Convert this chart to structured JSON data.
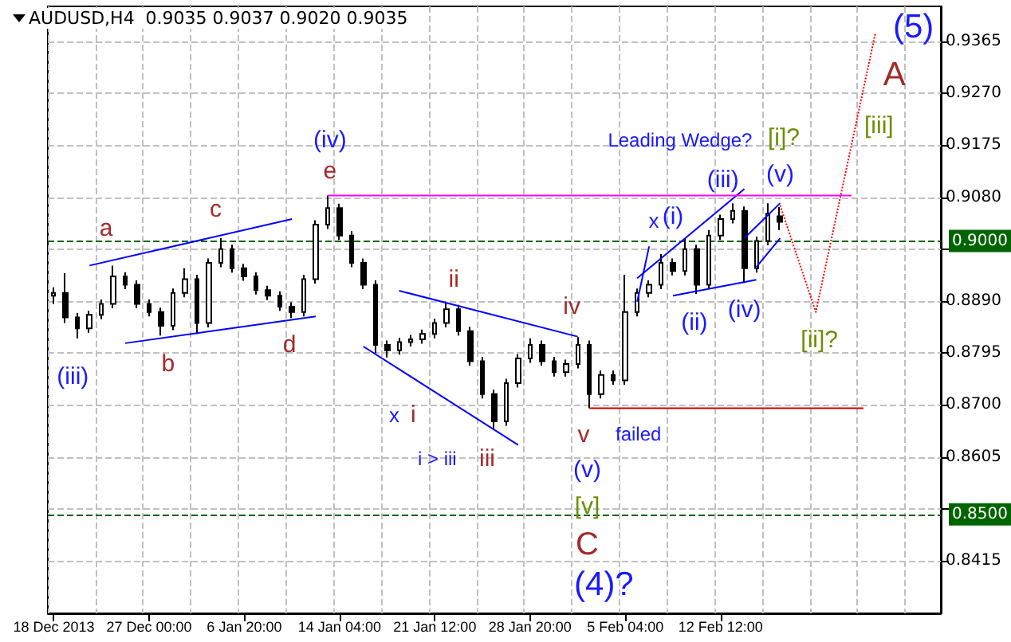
{
  "chart_data": {
    "type": "candlestick",
    "title": "AUDUSD,H4  0.9035 0.9037 0.9020 0.9035",
    "categories": [
      "18 Dec 2013",
      null,
      null,
      null,
      null,
      null,
      null,
      null,
      "27 Dec 00:00",
      null,
      null,
      null,
      null,
      null,
      null,
      null,
      "6 Jan 20:00",
      null,
      null,
      null,
      null,
      null,
      null,
      null,
      "14 Jan 04:00",
      null,
      null,
      null,
      null,
      null,
      null,
      null,
      "21 Jan 12:00",
      null,
      null,
      null,
      null,
      null,
      null,
      null,
      "28 Jan 20:00",
      null,
      null,
      null,
      null,
      null,
      null,
      null,
      "5 Feb 04:00",
      null,
      null,
      null,
      null,
      null,
      null,
      null,
      "12 Feb 12:00",
      null,
      null,
      null,
      null,
      null,
      null,
      null,
      null,
      null,
      null,
      null,
      null,
      null,
      null,
      null,
      null,
      null,
      null
    ],
    "color": "#000000",
    "ohlc": [
      [
        0.89,
        0.8915,
        0.8885,
        0.8905
      ],
      [
        0.8905,
        0.8941,
        0.885,
        0.886
      ],
      [
        0.886,
        0.8868,
        0.8822,
        0.884
      ],
      [
        0.884,
        0.8872,
        0.8832,
        0.8865
      ],
      [
        0.8865,
        0.8893,
        0.8857,
        0.8885
      ],
      [
        0.8885,
        0.8955,
        0.8877,
        0.8935
      ],
      [
        0.8935,
        0.8943,
        0.8912,
        0.892
      ],
      [
        0.892,
        0.8928,
        0.8877,
        0.8885
      ],
      [
        0.8885,
        0.8893,
        0.8862,
        0.887
      ],
      [
        0.887,
        0.8878,
        0.8827,
        0.8845
      ],
      [
        0.8845,
        0.8913,
        0.8837,
        0.8905
      ],
      [
        0.8905,
        0.895,
        0.8897,
        0.893
      ],
      [
        0.893,
        0.8938,
        0.883,
        0.885
      ],
      [
        0.885,
        0.8968,
        0.8842,
        0.896
      ],
      [
        0.896,
        0.9005,
        0.8952,
        0.8985
      ],
      [
        0.8985,
        0.8993,
        0.8942,
        0.895
      ],
      [
        0.895,
        0.8958,
        0.8927,
        0.8935
      ],
      [
        0.8935,
        0.8943,
        0.8902,
        0.891
      ],
      [
        0.891,
        0.8918,
        0.8892,
        0.89
      ],
      [
        0.89,
        0.8908,
        0.8872,
        0.888
      ],
      [
        0.888,
        0.8888,
        0.8859,
        0.887
      ],
      [
        0.887,
        0.8938,
        0.8862,
        0.893
      ],
      [
        0.893,
        0.9038,
        0.8922,
        0.903
      ],
      [
        0.903,
        0.9083,
        0.9022,
        0.906
      ],
      [
        0.906,
        0.9068,
        0.9002,
        0.901
      ],
      [
        0.901,
        0.9018,
        0.8952,
        0.896
      ],
      [
        0.896,
        0.8968,
        0.8912,
        0.892
      ],
      [
        0.892,
        0.8928,
        0.8795,
        0.881
      ],
      [
        0.881,
        0.8818,
        0.8787,
        0.88
      ],
      [
        0.88,
        0.8823,
        0.8792,
        0.8815
      ],
      [
        0.8815,
        0.8828,
        0.8807,
        0.882
      ],
      [
        0.882,
        0.8838,
        0.8812,
        0.883
      ],
      [
        0.883,
        0.8858,
        0.8822,
        0.885
      ],
      [
        0.885,
        0.8889,
        0.8842,
        0.8875
      ],
      [
        0.8875,
        0.8883,
        0.8827,
        0.8835
      ],
      [
        0.8835,
        0.8843,
        0.8772,
        0.878
      ],
      [
        0.878,
        0.8788,
        0.8712,
        0.872
      ],
      [
        0.872,
        0.8728,
        0.8656,
        0.867
      ],
      [
        0.867,
        0.8748,
        0.8662,
        0.874
      ],
      [
        0.874,
        0.8793,
        0.8732,
        0.8785
      ],
      [
        0.8785,
        0.8822,
        0.8777,
        0.881
      ],
      [
        0.881,
        0.8818,
        0.8772,
        0.878
      ],
      [
        0.878,
        0.8788,
        0.8752,
        0.876
      ],
      [
        0.876,
        0.8783,
        0.8752,
        0.8775
      ],
      [
        0.8775,
        0.8824,
        0.8767,
        0.881
      ],
      [
        0.881,
        0.8818,
        0.8694,
        0.872
      ],
      [
        0.872,
        0.8763,
        0.8712,
        0.8755
      ],
      [
        0.8755,
        0.8763,
        0.8737,
        0.8745
      ],
      [
        0.8745,
        0.8938,
        0.8737,
        0.887
      ],
      [
        0.887,
        0.8913,
        0.8862,
        0.8905
      ],
      [
        0.8905,
        0.8928,
        0.8897,
        0.892
      ],
      [
        0.892,
        0.8976,
        0.8912,
        0.896
      ],
      [
        0.896,
        0.8968,
        0.8937,
        0.8945
      ],
      [
        0.8945,
        0.9005,
        0.8937,
        0.8985
      ],
      [
        0.8985,
        0.8993,
        0.8903,
        0.892
      ],
      [
        0.892,
        0.902,
        0.8912,
        0.901
      ],
      [
        0.901,
        0.9048,
        0.9002,
        0.904
      ],
      [
        0.904,
        0.9069,
        0.9032,
        0.9055
      ],
      [
        0.9055,
        0.9063,
        0.8923,
        0.895
      ],
      [
        0.895,
        0.9008,
        0.8942,
        0.9
      ],
      [
        0.9,
        0.9069,
        0.8992,
        0.905
      ],
      [
        0.9045,
        0.9062,
        0.902,
        0.9035
      ],
      null,
      null,
      null,
      null,
      null,
      null,
      null,
      null,
      null,
      null,
      null,
      null,
      null
    ],
    "series": [
      {
        "type": "line",
        "color": "#0000ff",
        "values": [
          null,
          null,
          null,
          0.8955,
          null,
          null,
          null,
          null,
          null,
          null,
          null,
          null,
          null,
          null,
          null,
          null,
          null,
          null,
          null,
          null,
          0.904,
          null,
          null,
          null,
          null,
          null,
          null,
          null,
          null,
          null,
          null,
          null,
          null,
          null,
          null,
          null,
          null,
          null,
          null,
          null,
          null,
          null,
          null,
          null,
          null,
          null,
          null,
          null,
          null,
          null,
          null,
          null,
          null,
          null,
          null,
          null,
          null,
          null,
          null,
          null,
          null,
          null,
          null,
          null,
          null,
          null,
          null,
          null,
          null,
          null,
          null,
          null,
          null,
          null,
          null
        ]
      },
      {
        "type": "line",
        "color": "#0000ff",
        "values": [
          null,
          null,
          null,
          null,
          null,
          null,
          0.8813,
          null,
          null,
          null,
          null,
          null,
          null,
          null,
          null,
          null,
          null,
          null,
          null,
          null,
          null,
          null,
          0.8862,
          null,
          null,
          null,
          null,
          null,
          null,
          null,
          null,
          null,
          null,
          null,
          null,
          null,
          null,
          null,
          null,
          null,
          null,
          null,
          null,
          null,
          null,
          null,
          null,
          null,
          null,
          null,
          null,
          null,
          null,
          null,
          null,
          null,
          null,
          null,
          null,
          null,
          null,
          null,
          null,
          null,
          null,
          null,
          null,
          null,
          null,
          null,
          null,
          null,
          null,
          null,
          null
        ]
      },
      {
        "type": "line",
        "color": "#0000ff",
        "values": [
          null,
          null,
          null,
          null,
          null,
          null,
          null,
          null,
          null,
          null,
          null,
          null,
          null,
          null,
          null,
          null,
          null,
          null,
          null,
          null,
          null,
          null,
          null,
          null,
          null,
          null,
          0.8807,
          null,
          null,
          null,
          null,
          null,
          null,
          null,
          null,
          null,
          null,
          null,
          null,
          0.8627,
          null,
          null,
          null,
          null,
          null,
          null,
          null,
          null,
          null,
          null,
          null,
          null,
          null,
          null,
          null,
          null,
          null,
          null,
          null,
          null,
          null,
          null,
          null,
          null,
          null,
          null,
          null,
          null,
          null,
          null,
          null,
          null,
          null,
          null,
          null
        ]
      },
      {
        "type": "line",
        "color": "#0000ff",
        "values": [
          null,
          null,
          null,
          null,
          null,
          null,
          null,
          null,
          null,
          null,
          null,
          null,
          null,
          null,
          null,
          null,
          null,
          null,
          null,
          null,
          null,
          null,
          null,
          null,
          null,
          null,
          null,
          null,
          null,
          0.8909,
          null,
          null,
          null,
          null,
          null,
          null,
          null,
          null,
          null,
          null,
          null,
          null,
          null,
          null,
          0.8825,
          null,
          null,
          null,
          null,
          null,
          null,
          null,
          null,
          null,
          null,
          null,
          null,
          null,
          null,
          null,
          null,
          null,
          null,
          null,
          null,
          null,
          null,
          null,
          null,
          null,
          null,
          null,
          null,
          null,
          null
        ]
      },
      {
        "type": "line",
        "color": "#0000ff",
        "values": [
          null,
          null,
          null,
          null,
          null,
          null,
          null,
          null,
          null,
          null,
          null,
          null,
          null,
          null,
          null,
          null,
          null,
          null,
          null,
          null,
          null,
          null,
          null,
          null,
          null,
          null,
          null,
          null,
          null,
          null,
          null,
          null,
          null,
          null,
          null,
          null,
          null,
          null,
          null,
          null,
          null,
          null,
          null,
          null,
          null,
          null,
          null,
          null,
          null,
          0.8889,
          0.899,
          null,
          null,
          null,
          null,
          null,
          null,
          null,
          null,
          null,
          null,
          null,
          null,
          null,
          null,
          null,
          null,
          null,
          null,
          null,
          null,
          null,
          null,
          null,
          null
        ]
      },
      {
        "type": "line",
        "color": "#0000ff",
        "values": [
          null,
          null,
          null,
          null,
          null,
          null,
          null,
          null,
          null,
          null,
          null,
          null,
          null,
          null,
          null,
          null,
          null,
          null,
          null,
          null,
          null,
          null,
          null,
          null,
          null,
          null,
          null,
          null,
          null,
          null,
          null,
          null,
          null,
          null,
          null,
          null,
          null,
          null,
          null,
          null,
          null,
          null,
          null,
          null,
          null,
          null,
          null,
          null,
          null,
          0.8932,
          null,
          null,
          null,
          null,
          null,
          null,
          null,
          null,
          0.9095,
          null,
          null,
          null,
          null,
          null,
          null,
          null,
          null,
          null,
          null,
          null,
          null,
          null,
          null,
          null,
          null
        ]
      },
      {
        "type": "line",
        "color": "#0000ff",
        "values": [
          null,
          null,
          null,
          null,
          null,
          null,
          null,
          null,
          null,
          null,
          null,
          null,
          null,
          null,
          null,
          null,
          null,
          null,
          null,
          null,
          null,
          null,
          null,
          null,
          null,
          null,
          null,
          null,
          null,
          null,
          null,
          null,
          null,
          null,
          null,
          null,
          null,
          null,
          null,
          null,
          null,
          null,
          null,
          null,
          null,
          null,
          null,
          null,
          null,
          null,
          null,
          null,
          0.89,
          null,
          null,
          null,
          null,
          null,
          null,
          0.8929,
          null,
          null,
          null,
          null,
          null,
          null,
          null,
          null,
          null,
          null,
          null,
          null,
          null,
          null,
          null
        ]
      },
      {
        "type": "line",
        "color": "#0000ff",
        "values": [
          null,
          null,
          null,
          null,
          null,
          null,
          null,
          null,
          null,
          null,
          null,
          null,
          null,
          null,
          null,
          null,
          null,
          null,
          null,
          null,
          null,
          null,
          null,
          null,
          null,
          null,
          null,
          null,
          null,
          null,
          null,
          null,
          null,
          null,
          null,
          null,
          null,
          null,
          null,
          null,
          null,
          null,
          null,
          null,
          null,
          null,
          null,
          null,
          null,
          null,
          null,
          null,
          null,
          null,
          null,
          null,
          null,
          null,
          0.9005,
          null,
          null,
          0.9069,
          null,
          null,
          null,
          null,
          null,
          null,
          null,
          null,
          null,
          null,
          null,
          null,
          null
        ]
      },
      {
        "type": "line",
        "color": "#0000ff",
        "values": [
          null,
          null,
          null,
          null,
          null,
          null,
          null,
          null,
          null,
          null,
          null,
          null,
          null,
          null,
          null,
          null,
          null,
          null,
          null,
          null,
          null,
          null,
          null,
          null,
          null,
          null,
          null,
          null,
          null,
          null,
          null,
          null,
          null,
          null,
          null,
          null,
          null,
          null,
          null,
          null,
          null,
          null,
          null,
          null,
          null,
          null,
          null,
          null,
          null,
          null,
          null,
          null,
          null,
          null,
          null,
          null,
          null,
          null,
          null,
          0.8952,
          null,
          0.9005,
          null,
          null,
          null,
          null,
          null,
          null,
          null,
          null,
          null,
          null,
          null,
          null,
          null
        ]
      },
      {
        "type": "line",
        "color": "#ff00ff",
        "values": [
          null,
          null,
          null,
          null,
          null,
          null,
          null,
          null,
          null,
          null,
          null,
          null,
          null,
          null,
          null,
          null,
          null,
          null,
          null,
          null,
          null,
          null,
          null,
          0.9083,
          null,
          null,
          null,
          null,
          null,
          null,
          null,
          null,
          null,
          null,
          null,
          null,
          null,
          null,
          null,
          null,
          null,
          null,
          null,
          null,
          null,
          null,
          null,
          null,
          null,
          null,
          null,
          null,
          null,
          null,
          null,
          null,
          null,
          null,
          null,
          null,
          null,
          null,
          null,
          null,
          null,
          null,
          null,
          0.9083,
          null,
          null,
          null,
          null,
          null,
          null,
          null
        ]
      },
      {
        "type": "line",
        "color": "#cc0000",
        "values": [
          null,
          null,
          null,
          null,
          null,
          null,
          null,
          null,
          null,
          null,
          null,
          null,
          null,
          null,
          null,
          null,
          null,
          null,
          null,
          null,
          null,
          null,
          null,
          null,
          null,
          null,
          null,
          null,
          null,
          null,
          null,
          null,
          null,
          null,
          null,
          null,
          null,
          null,
          null,
          null,
          null,
          null,
          null,
          null,
          null,
          0.8694,
          null,
          null,
          null,
          null,
          null,
          null,
          null,
          null,
          null,
          null,
          null,
          null,
          null,
          null,
          null,
          null,
          null,
          null,
          null,
          null,
          null,
          null,
          0.8694,
          null,
          null,
          null,
          null,
          null,
          null
        ]
      },
      {
        "type": "line",
        "color": "#ff0000",
        "line_style": "dotted",
        "values": [
          null,
          null,
          null,
          null,
          null,
          null,
          null,
          null,
          null,
          null,
          null,
          null,
          null,
          null,
          null,
          null,
          null,
          null,
          null,
          null,
          null,
          null,
          null,
          null,
          null,
          null,
          null,
          null,
          null,
          null,
          null,
          null,
          null,
          null,
          null,
          null,
          null,
          null,
          null,
          null,
          null,
          null,
          null,
          null,
          null,
          null,
          null,
          null,
          null,
          null,
          null,
          null,
          null,
          null,
          null,
          null,
          null,
          null,
          null,
          null,
          null,
          0.9065,
          null,
          null,
          0.887,
          null,
          null,
          null,
          null,
          0.938,
          null,
          null,
          null,
          null,
          null
        ]
      }
    ],
    "ylim": [
      0.8319,
      0.9429
    ],
    "yticks": [
      {
        "value": 0.8415,
        "label": "0.8415"
      },
      {
        "value": 0.851,
        "label": null
      },
      {
        "value": 0.8605,
        "label": "0.8605"
      },
      {
        "value": 0.87,
        "label": "0.8700"
      },
      {
        "value": 0.8795,
        "label": "0.8795"
      },
      {
        "value": 0.889,
        "label": "0.8890"
      },
      {
        "value": 0.8985,
        "label": null
      },
      {
        "value": 0.908,
        "label": "0.9080"
      },
      {
        "value": 0.9175,
        "label": "0.9175"
      },
      {
        "value": 0.927,
        "label": "0.9270"
      },
      {
        "value": 0.9365,
        "label": "0.9365"
      }
    ],
    "ref_lines": [
      {
        "axis": "y",
        "value": 0.9,
        "label": "0.9000",
        "color": "#006400",
        "line_style": "dashed"
      },
      {
        "axis": "y",
        "value": 0.85,
        "label": "0.8500",
        "color": "#006400",
        "line_style": "dashed"
      }
    ],
    "annotations": [
      "(iii)",
      "a",
      "b",
      "c",
      "d",
      "(iv)",
      "e",
      "ii",
      "x",
      "i",
      "i > iii",
      "iii",
      "iv",
      "v",
      "failed",
      "(v)",
      "[v]",
      "C",
      "(4)?",
      "Leading Wedge?",
      "x",
      "(i)",
      "(ii)",
      "(iii)",
      "(iv)",
      "(v)",
      "[i]?",
      "[ii]?",
      "[iii]",
      "A",
      "(5)"
    ],
    "grid": true
  }
}
